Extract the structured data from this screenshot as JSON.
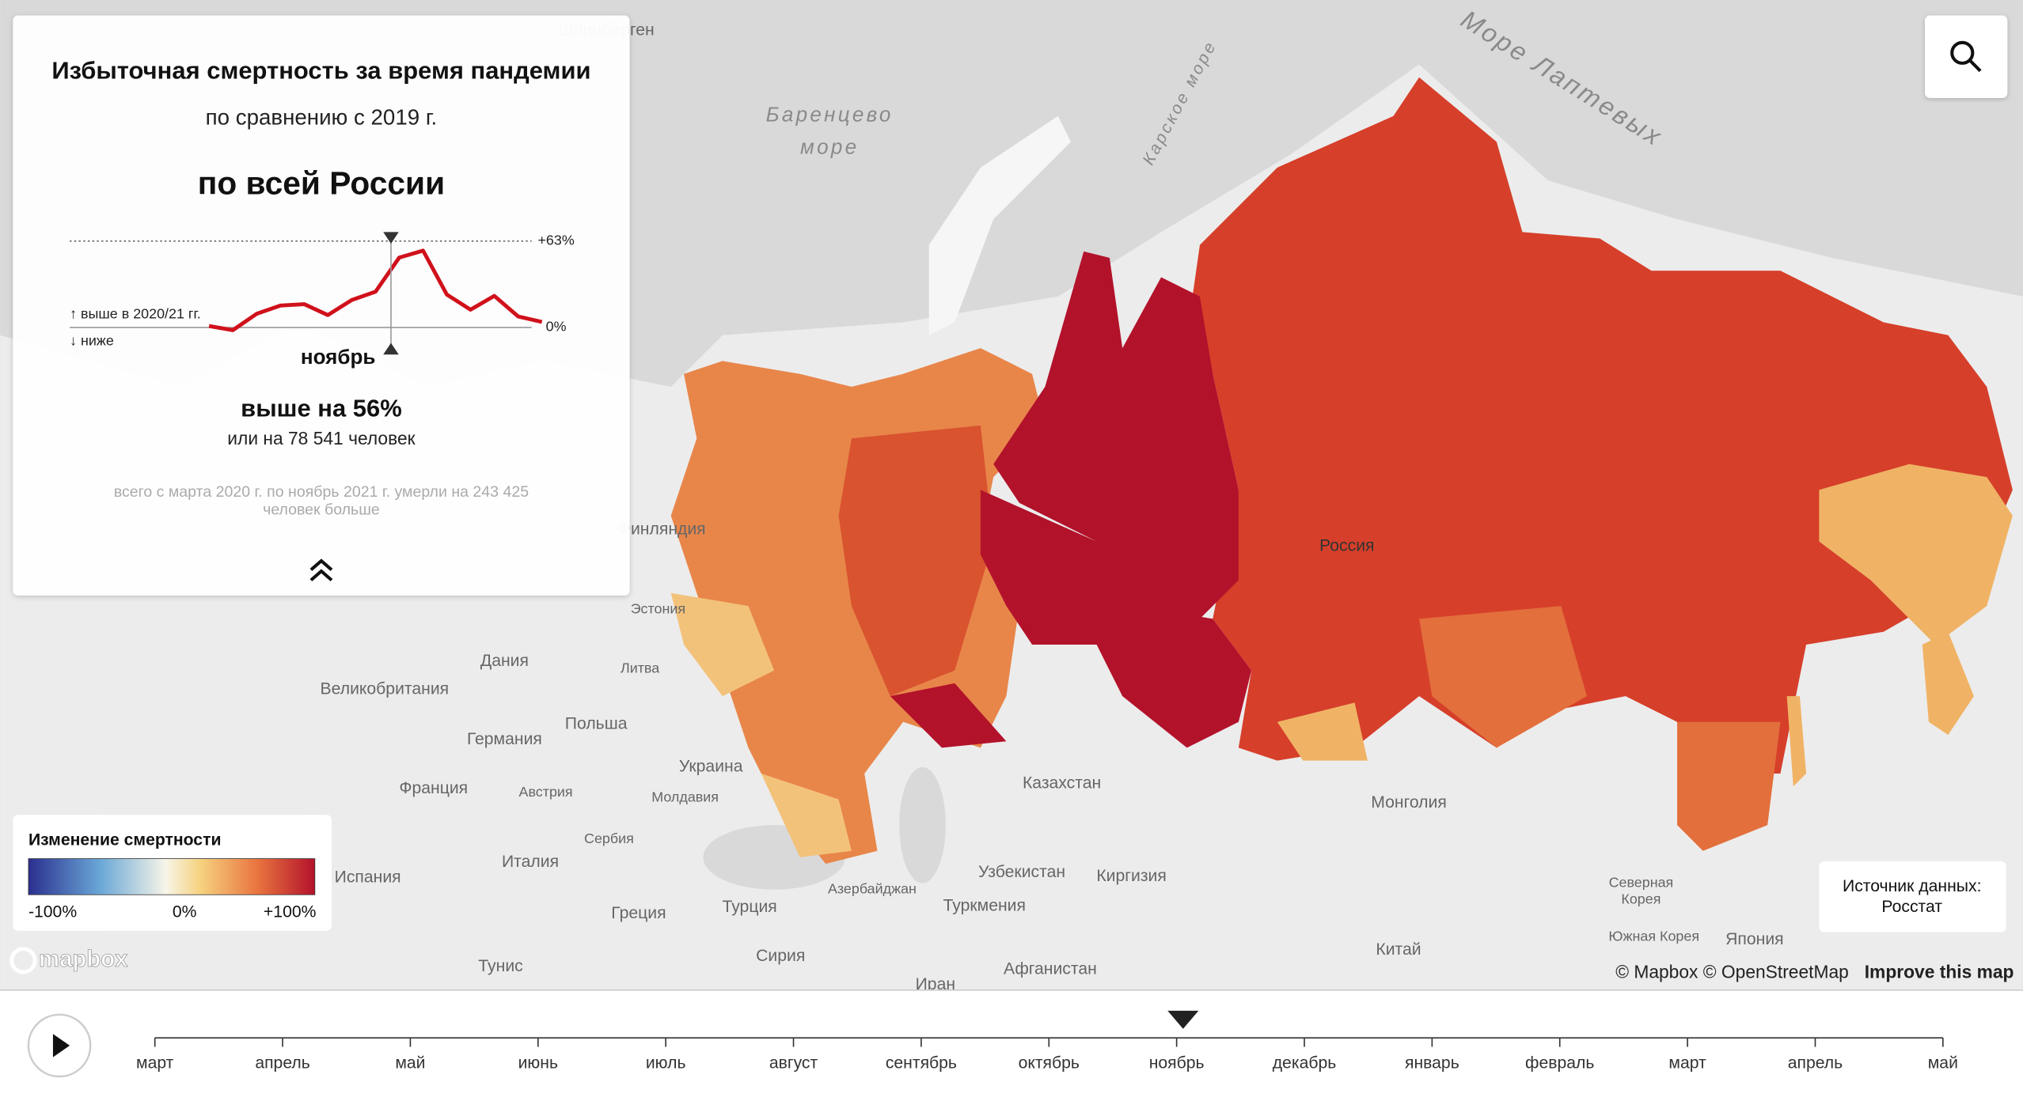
{
  "panel": {
    "title": "Избыточная смертность за время пандемии",
    "subtitle": "по сравнению с 2019 г.",
    "region": "по всей России",
    "chart": {
      "type": "line",
      "values": [
        1,
        -2,
        10,
        16,
        17,
        9,
        20,
        26,
        51,
        56,
        24,
        13,
        23,
        8,
        4
      ],
      "ticks": [
        {
          "value": 63,
          "label": "+63%"
        },
        {
          "value": 0,
          "label": "0%"
        }
      ],
      "annotation_up": "↑ выше в 2020/21 гг.",
      "annotation_down": "↓ ниже",
      "selected_label": "ноябрь"
    },
    "result": "выше на 56%",
    "result_detail": "или на 78 541 человек",
    "total": [
      "всего с марта 2020 г. по ноябрь 2021 г. умерли на 243 425",
      "человек больше"
    ]
  },
  "legend": {
    "title": "Изменение смертности",
    "labels": [
      "-100%",
      "0%",
      "+100%"
    ]
  },
  "source": [
    "Источник данных:",
    "Росстат"
  ],
  "map_labels": [
    "Шпицберген",
    "Баренцево",
    "море",
    "Карское море",
    "Море Лаптевых",
    "Финляндия",
    "Россия",
    "Эстония",
    "Литва",
    "Дания",
    "Великобритания",
    "Польша",
    "Германия",
    "Украина",
    "Франция",
    "Австрия",
    "Молдавия",
    "Казахстан",
    "Монголия",
    "Сербия",
    "Италия",
    "Испания",
    "Азербайджан",
    "Узбекистан",
    "Киргизия",
    "Туркмения",
    "Турция",
    "Греция",
    "Сирия",
    "Тунис",
    "Афганистан",
    "Китай",
    "Северная",
    "Корея",
    "Южная Корея",
    "Япония",
    "Иран"
  ],
  "attribution": {
    "logo": "mapbox",
    "credits": "© Mapbox © OpenStreetMap",
    "improve": "Improve this map"
  },
  "timeline": {
    "months": [
      "март",
      "апрель",
      "май",
      "июнь",
      "июль",
      "август",
      "сентябрь",
      "октябрь",
      "ноябрь",
      "декабрь",
      "январь",
      "февраль",
      "март",
      "апрель",
      "май"
    ]
  }
}
